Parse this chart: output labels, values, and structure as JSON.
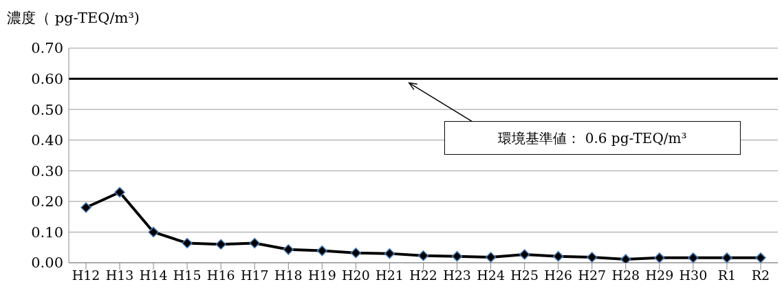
{
  "chart_data": {
    "type": "line",
    "ylabel": "濃度（ pg-TEQ/m³)",
    "categories": [
      "H12",
      "H13",
      "H14",
      "H15",
      "H16",
      "H17",
      "H18",
      "H19",
      "H20",
      "H21",
      "H22",
      "H23",
      "H24",
      "H25",
      "H26",
      "H27",
      "H28",
      "H29",
      "H30",
      "R1",
      "R2"
    ],
    "series": [
      {
        "color": "#000000",
        "values": [
          0.18,
          0.23,
          0.1,
          0.064,
          0.06,
          0.064,
          0.043,
          0.039,
          0.032,
          0.03,
          0.023,
          0.021,
          0.018,
          0.027,
          0.021,
          0.018,
          0.011,
          0.016,
          0.016,
          0.016,
          0.016
        ]
      }
    ],
    "ylim": [
      0,
      0.7
    ],
    "yticks": [
      {
        "value": 0,
        "label": "0.00"
      },
      {
        "value": 0.1,
        "label": "0.10"
      },
      {
        "value": 0.2,
        "label": "0.20"
      },
      {
        "value": 0.3,
        "label": "0.30"
      },
      {
        "value": 0.4,
        "label": "0.40"
      },
      {
        "value": 0.5,
        "label": "0.50"
      },
      {
        "value": 0.6,
        "label": "0.60"
      },
      {
        "value": 0.7,
        "label": "0.70"
      }
    ],
    "ref_lines": [
      {
        "axis": "y",
        "value": 0.6,
        "label": "環境基準値： 0.6 pg-TEQ/m³",
        "color": "#000000",
        "line_style": "solid"
      }
    ],
    "grid": "y",
    "marker": "diamond",
    "line_style": "solid"
  }
}
